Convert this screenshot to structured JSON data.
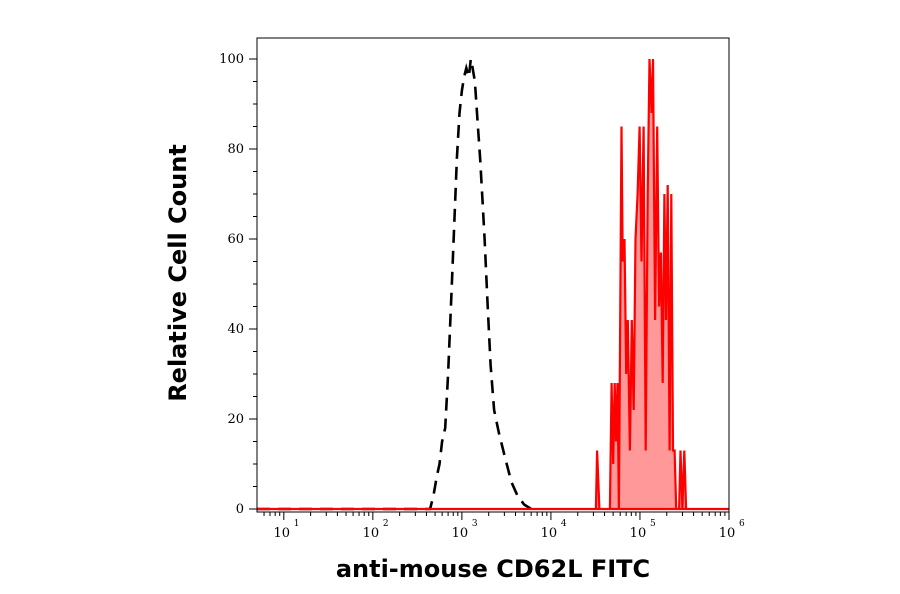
{
  "chart_data": {
    "type": "area",
    "title": "",
    "xlabel": "anti-mouse CD62L FITC",
    "ylabel": "Relative Cell Count",
    "x_scale": "log10",
    "xlim": [
      5,
      1000000
    ],
    "ylim": [
      0,
      105
    ],
    "grid": false,
    "x_ticks": [
      {
        "value": 10,
        "base": "10",
        "exp": "1"
      },
      {
        "value": 100,
        "base": "10",
        "exp": "2"
      },
      {
        "value": 1000,
        "base": "10",
        "exp": "3"
      },
      {
        "value": 10000,
        "base": "10",
        "exp": "4"
      },
      {
        "value": 100000,
        "base": "10",
        "exp": "5"
      },
      {
        "value": 1000000,
        "base": "10",
        "exp": "6"
      }
    ],
    "y_ticks": [
      {
        "value": 0,
        "label": "0"
      },
      {
        "value": 20,
        "label": "20"
      },
      {
        "value": 40,
        "label": "40"
      },
      {
        "value": 60,
        "label": "60"
      },
      {
        "value": 80,
        "label": "80"
      },
      {
        "value": 100,
        "label": "100"
      }
    ],
    "series": [
      {
        "style": "dashed-line",
        "color": "#000000",
        "points": [
          [
            5,
            0
          ],
          [
            440,
            0
          ],
          [
            480,
            3
          ],
          [
            520,
            7
          ],
          [
            560,
            10
          ],
          [
            600,
            15
          ],
          [
            650,
            18
          ],
          [
            700,
            30
          ],
          [
            760,
            47
          ],
          [
            820,
            63
          ],
          [
            880,
            78
          ],
          [
            940,
            88
          ],
          [
            1000,
            93
          ],
          [
            1060,
            96
          ],
          [
            1120,
            98
          ],
          [
            1200,
            96
          ],
          [
            1260,
            100
          ],
          [
            1320,
            98
          ],
          [
            1400,
            95
          ],
          [
            1500,
            86
          ],
          [
            1600,
            78
          ],
          [
            1700,
            69
          ],
          [
            1800,
            60
          ],
          [
            1950,
            45
          ],
          [
            2100,
            32
          ],
          [
            2300,
            22
          ],
          [
            2600,
            17
          ],
          [
            3000,
            12
          ],
          [
            3600,
            6
          ],
          [
            4200,
            3
          ],
          [
            5000,
            1
          ],
          [
            6000,
            0
          ]
        ]
      },
      {
        "style": "filled-area",
        "color": "#ff0000",
        "fill": "#ff9999",
        "points": [
          [
            5,
            0
          ],
          [
            32000,
            0
          ],
          [
            33000,
            13
          ],
          [
            35000,
            0
          ],
          [
            46000,
            0
          ],
          [
            48000,
            28
          ],
          [
            50000,
            10
          ],
          [
            52000,
            28
          ],
          [
            54000,
            15
          ],
          [
            56000,
            28
          ],
          [
            58000,
            0
          ],
          [
            60000,
            42
          ],
          [
            62000,
            85
          ],
          [
            64000,
            55
          ],
          [
            67000,
            60
          ],
          [
            70000,
            30
          ],
          [
            73000,
            42
          ],
          [
            77000,
            13
          ],
          [
            81000,
            42
          ],
          [
            85000,
            22
          ],
          [
            89000,
            60
          ],
          [
            94000,
            70
          ],
          [
            99000,
            85
          ],
          [
            104000,
            55
          ],
          [
            110000,
            85
          ],
          [
            116000,
            13
          ],
          [
            122000,
            70
          ],
          [
            128000,
            100
          ],
          [
            135000,
            88
          ],
          [
            140000,
            100
          ],
          [
            148000,
            42
          ],
          [
            156000,
            85
          ],
          [
            164000,
            45
          ],
          [
            172000,
            57
          ],
          [
            180000,
            28
          ],
          [
            188000,
            70
          ],
          [
            196000,
            42
          ],
          [
            205000,
            72
          ],
          [
            215000,
            13
          ],
          [
            225000,
            70
          ],
          [
            235000,
            13
          ],
          [
            245000,
            13
          ],
          [
            255000,
            0
          ],
          [
            275000,
            0
          ],
          [
            285000,
            13
          ],
          [
            300000,
            0
          ],
          [
            315000,
            13
          ],
          [
            330000,
            0
          ],
          [
            1000000,
            0
          ]
        ]
      }
    ]
  }
}
